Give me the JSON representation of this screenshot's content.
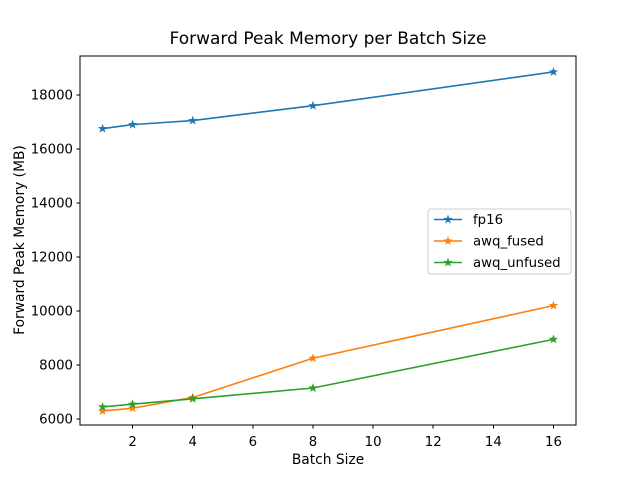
{
  "chart_data": {
    "type": "line",
    "title": "Forward Peak Memory per Batch Size",
    "xlabel": "Batch Size",
    "ylabel": "Forward Peak Memory (MB)",
    "x": [
      1,
      2,
      4,
      8,
      16
    ],
    "series": [
      {
        "name": "fp16",
        "color": "#1f77b4",
        "values": [
          16750,
          16900,
          17050,
          17600,
          18850
        ]
      },
      {
        "name": "awq_fused",
        "color": "#ff7f0e",
        "values": [
          6300,
          6400,
          6800,
          8250,
          10200
        ]
      },
      {
        "name": "awq_unfused",
        "color": "#2ca02c",
        "values": [
          6450,
          6550,
          6750,
          7150,
          8950
        ]
      }
    ],
    "marker": "star",
    "xticks": [
      2,
      4,
      6,
      8,
      10,
      12,
      14,
      16
    ],
    "yticks": [
      6000,
      8000,
      10000,
      12000,
      14000,
      16000,
      18000
    ],
    "xlim": [
      0.25,
      16.75
    ],
    "ylim": [
      5780,
      19440
    ],
    "grid": false,
    "legend_position": "center right",
    "colors": {
      "background": "#ffffff",
      "spine": "#000000",
      "text": "#000000",
      "legend_border": "#cccccc"
    }
  }
}
